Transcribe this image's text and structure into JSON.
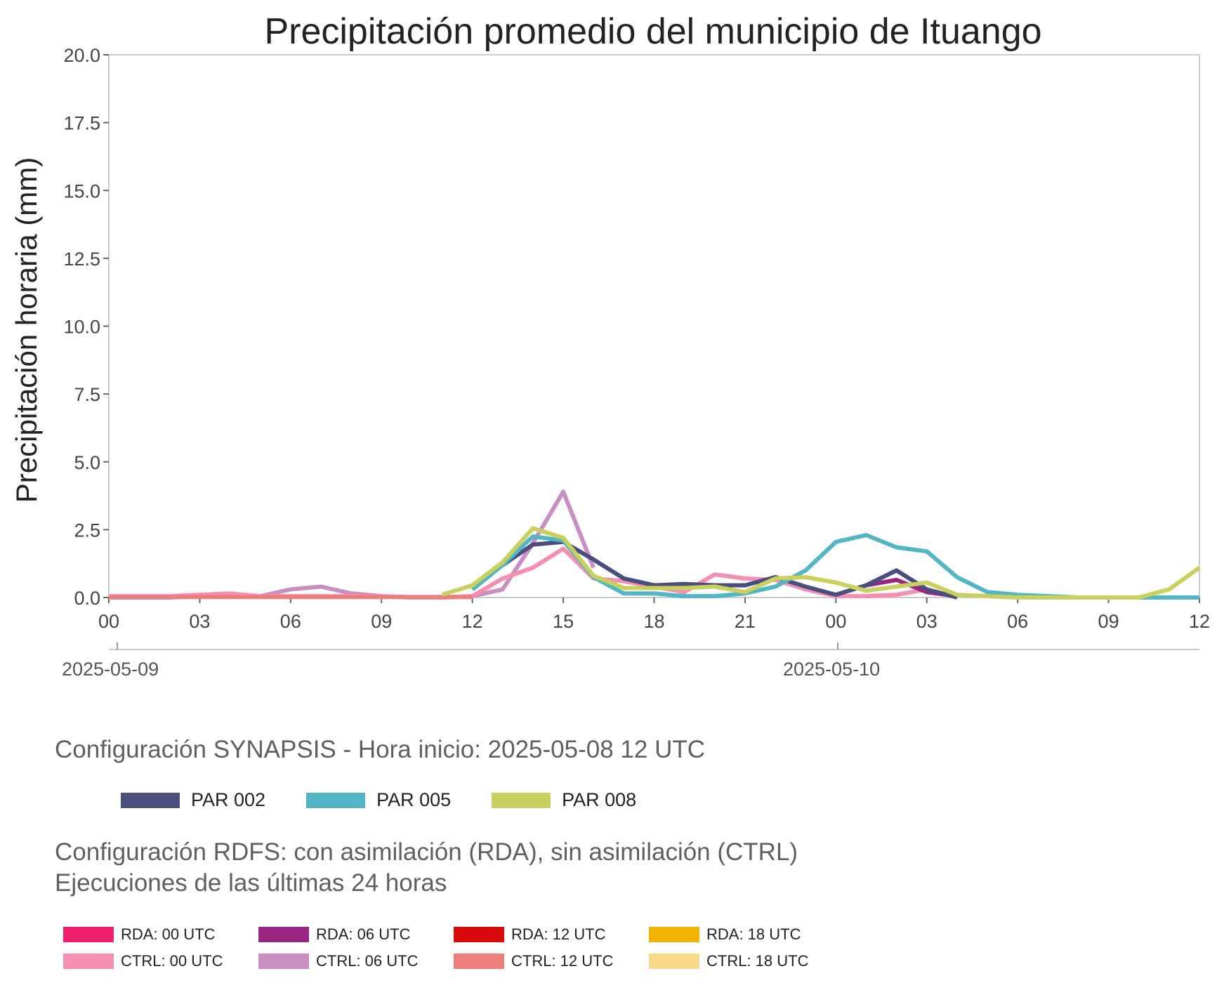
{
  "chart_data": {
    "type": "line",
    "title": "Precipitación promedio del municipio de Ituango",
    "ylabel": "Precipitación horaria (mm)",
    "xlabel": "",
    "ylim": [
      0,
      20
    ],
    "xlim": [
      "2025-05-09 00:00",
      "2025-05-10 12:00"
    ],
    "yticks": [
      "0.0",
      "2.5",
      "5.0",
      "7.5",
      "10.0",
      "12.5",
      "15.0",
      "17.5",
      "20.0"
    ],
    "xticks": [
      "00",
      "03",
      "06",
      "09",
      "12",
      "15",
      "18",
      "21",
      "00",
      "03",
      "06",
      "09",
      "12"
    ],
    "date_labels": [
      "2025-05-09",
      "2025-05-10"
    ],
    "grid": false,
    "series": [
      {
        "name": "CTRL: 06 UTC",
        "color": "#c98fc3",
        "x": [
          "2025-05-09 00:00",
          "2025-05-09 01:00",
          "2025-05-09 02:00",
          "2025-05-09 03:00",
          "2025-05-09 04:00",
          "2025-05-09 05:00",
          "2025-05-09 06:00",
          "2025-05-09 07:00",
          "2025-05-09 08:00",
          "2025-05-09 09:00",
          "2025-05-09 10:00",
          "2025-05-09 11:00",
          "2025-05-09 12:00",
          "2025-05-09 13:00",
          "2025-05-09 14:00",
          "2025-05-09 15:00",
          "2025-05-09 16:00"
        ],
        "y": [
          0.0,
          0.0,
          0.0,
          0.05,
          0.05,
          0.05,
          0.3,
          0.4,
          0.15,
          0.05,
          0.0,
          0.0,
          0.05,
          0.3,
          2.0,
          3.9,
          1.1
        ]
      },
      {
        "name": "CTRL: 00 UTC",
        "color": "#f48fb1",
        "x": [
          "2025-05-09 00:00",
          "2025-05-09 01:00",
          "2025-05-09 02:00",
          "2025-05-09 03:00",
          "2025-05-09 04:00",
          "2025-05-09 05:00",
          "2025-05-09 06:00",
          "2025-05-09 07:00",
          "2025-05-09 08:00",
          "2025-05-09 09:00",
          "2025-05-09 10:00",
          "2025-05-09 11:00",
          "2025-05-09 12:00",
          "2025-05-09 13:00",
          "2025-05-09 14:00",
          "2025-05-09 15:00",
          "2025-05-09 16:00",
          "2025-05-09 17:00",
          "2025-05-09 18:00",
          "2025-05-09 19:00",
          "2025-05-09 20:00",
          "2025-05-09 21:00",
          "2025-05-09 22:00",
          "2025-05-09 23:00",
          "2025-05-10 00:00",
          "2025-05-10 01:00",
          "2025-05-10 02:00",
          "2025-05-10 03:00"
        ],
        "y": [
          0.05,
          0.05,
          0.05,
          0.1,
          0.15,
          0.05,
          0.05,
          0.05,
          0.05,
          0.05,
          0.0,
          0.0,
          0.05,
          0.7,
          1.1,
          1.8,
          0.7,
          0.6,
          0.4,
          0.2,
          0.85,
          0.7,
          0.65,
          0.3,
          0.05,
          0.05,
          0.1,
          0.3
        ]
      },
      {
        "name": "CTRL: 12 UTC",
        "color": "#ec7f7b",
        "x": [
          "2025-05-09 00:00",
          "2025-05-09 03:00",
          "2025-05-09 06:00",
          "2025-05-09 09:00",
          "2025-05-09 12:00"
        ],
        "y": [
          0.02,
          0.02,
          0.02,
          0.02,
          0.02
        ]
      },
      {
        "name": "RDA: 06 UTC",
        "color": "#9b2483",
        "x": [
          "2025-05-10 01:00",
          "2025-05-10 02:00",
          "2025-05-10 03:00",
          "2025-05-10 04:00"
        ],
        "y": [
          0.45,
          0.65,
          0.2,
          0.05
        ]
      },
      {
        "name": "PAR 002",
        "color": "#4a4e7e",
        "x": [
          "2025-05-09 12:00",
          "2025-05-09 13:00",
          "2025-05-09 14:00",
          "2025-05-09 15:00",
          "2025-05-09 16:00",
          "2025-05-09 17:00",
          "2025-05-09 18:00",
          "2025-05-09 19:00",
          "2025-05-09 20:00",
          "2025-05-09 21:00",
          "2025-05-09 22:00",
          "2025-05-09 23:00",
          "2025-05-10 00:00",
          "2025-05-10 01:00",
          "2025-05-10 02:00",
          "2025-05-10 03:00",
          "2025-05-10 04:00"
        ],
        "y": [
          0.3,
          1.2,
          1.95,
          2.05,
          1.4,
          0.7,
          0.45,
          0.5,
          0.45,
          0.45,
          0.75,
          0.4,
          0.1,
          0.45,
          1.0,
          0.3,
          0.0
        ]
      },
      {
        "name": "PAR 005",
        "color": "#52b6c5",
        "x": [
          "2025-05-09 12:00",
          "2025-05-09 13:00",
          "2025-05-09 14:00",
          "2025-05-09 15:00",
          "2025-05-09 16:00",
          "2025-05-09 17:00",
          "2025-05-09 18:00",
          "2025-05-09 19:00",
          "2025-05-09 20:00",
          "2025-05-09 21:00",
          "2025-05-09 22:00",
          "2025-05-09 23:00",
          "2025-05-10 00:00",
          "2025-05-10 01:00",
          "2025-05-10 02:00",
          "2025-05-10 03:00",
          "2025-05-10 04:00",
          "2025-05-10 05:00",
          "2025-05-10 06:00",
          "2025-05-10 07:00",
          "2025-05-10 08:00",
          "2025-05-10 09:00",
          "2025-05-10 10:00",
          "2025-05-10 11:00",
          "2025-05-10 12:00"
        ],
        "y": [
          0.3,
          1.2,
          2.25,
          2.1,
          0.75,
          0.15,
          0.15,
          0.05,
          0.05,
          0.15,
          0.4,
          1.0,
          2.05,
          2.3,
          1.85,
          1.7,
          0.75,
          0.2,
          0.1,
          0.05,
          0.0,
          0.0,
          0.0,
          0.0,
          0.0
        ]
      },
      {
        "name": "PAR 008",
        "color": "#c9d05d",
        "x": [
          "2025-05-09 11:00",
          "2025-05-09 12:00",
          "2025-05-09 13:00",
          "2025-05-09 14:00",
          "2025-05-09 15:00",
          "2025-05-09 16:00",
          "2025-05-09 17:00",
          "2025-05-09 18:00",
          "2025-05-09 19:00",
          "2025-05-09 20:00",
          "2025-05-09 21:00",
          "2025-05-09 22:00",
          "2025-05-09 23:00",
          "2025-05-10 00:00",
          "2025-05-10 01:00",
          "2025-05-10 02:00",
          "2025-05-10 03:00",
          "2025-05-10 04:00",
          "2025-05-10 05:00",
          "2025-05-10 06:00",
          "2025-05-10 07:00",
          "2025-05-10 08:00",
          "2025-05-10 09:00",
          "2025-05-10 10:00",
          "2025-05-10 11:00",
          "2025-05-10 12:00"
        ],
        "y": [
          0.1,
          0.45,
          1.3,
          2.55,
          2.2,
          0.8,
          0.35,
          0.35,
          0.35,
          0.4,
          0.2,
          0.7,
          0.75,
          0.55,
          0.25,
          0.4,
          0.55,
          0.1,
          0.05,
          0.0,
          0.0,
          0.0,
          0.0,
          0.0,
          0.3,
          1.1
        ]
      }
    ]
  },
  "legends": {
    "synapsis_title": "Configuración SYNAPSIS - Hora inicio: 2025-05-08 12 UTC",
    "synapsis_items": [
      {
        "label": "PAR 002",
        "color": "#4a4e7e"
      },
      {
        "label": "PAR 005",
        "color": "#52b6c5"
      },
      {
        "label": "PAR 008",
        "color": "#c9d05d"
      }
    ],
    "rdfs_title": "Configuración RDFS: con asimilación (RDA), sin asimilación (CTRL)\n Ejecuciones de las últimas 24 horas",
    "rdfs_items": [
      {
        "label": "RDA: 00 UTC",
        "color": "#f0206e"
      },
      {
        "label": "RDA: 06 UTC",
        "color": "#9b2483"
      },
      {
        "label": "RDA: 12 UTC",
        "color": "#d90a0a"
      },
      {
        "label": "RDA: 18 UTC",
        "color": "#f0b400"
      },
      {
        "label": "CTRL: 00 UTC",
        "color": "#f48fb1"
      },
      {
        "label": "CTRL: 06 UTC",
        "color": "#c98fc3"
      },
      {
        "label": "CTRL: 12 UTC",
        "color": "#ec7f7b"
      },
      {
        "label": "CTRL: 18 UTC",
        "color": "#f8d98a"
      }
    ]
  }
}
